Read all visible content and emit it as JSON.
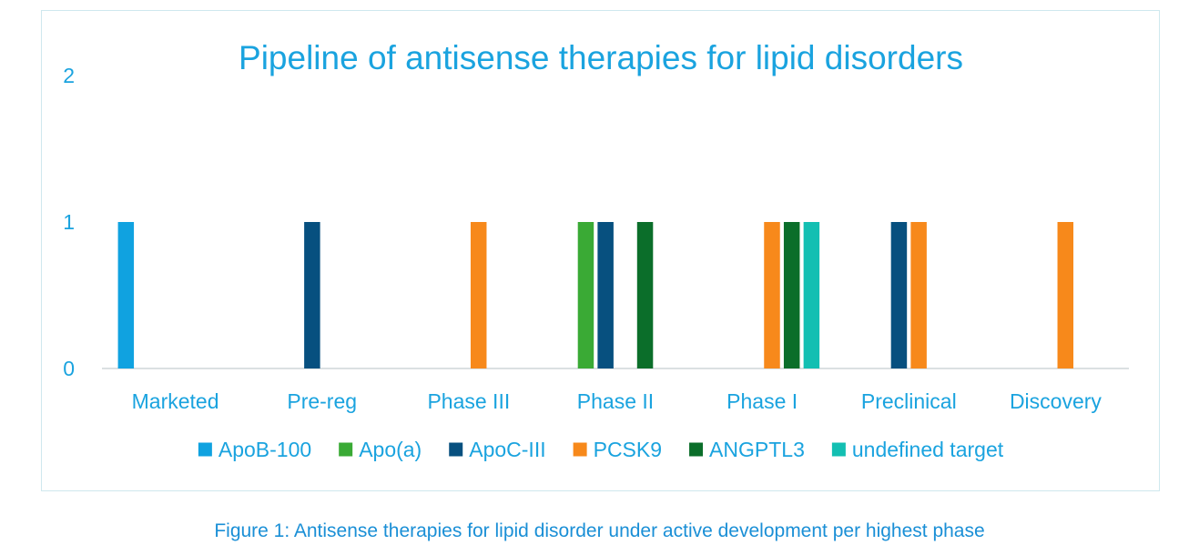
{
  "chart_data": {
    "type": "bar",
    "title": "Pipeline of antisense therapies for lipid disorders",
    "categories": [
      "Marketed",
      "Pre-reg",
      "Phase III",
      "Phase II",
      "Phase I",
      "Preclinical",
      "Discovery"
    ],
    "series": [
      {
        "name": "ApoB-100",
        "color": "#10a2e0",
        "values": [
          1,
          0,
          0,
          0,
          0,
          0,
          0
        ]
      },
      {
        "name": "Apo(a)",
        "color": "#3aaa35",
        "values": [
          0,
          0,
          0,
          1,
          0,
          0,
          0
        ]
      },
      {
        "name": "ApoC-III",
        "color": "#07507f",
        "values": [
          0,
          1,
          0,
          1,
          0,
          1,
          0
        ]
      },
      {
        "name": "PCSK9",
        "color": "#f7891b",
        "values": [
          0,
          0,
          1,
          0,
          1,
          1,
          1
        ]
      },
      {
        "name": "ANGPTL3",
        "color": "#0b6e2a",
        "values": [
          0,
          0,
          0,
          1,
          1,
          0,
          0
        ]
      },
      {
        "name": "undefined target",
        "color": "#13bfb2",
        "values": [
          0,
          0,
          0,
          0,
          1,
          0,
          0
        ]
      }
    ],
    "ylim": [
      0,
      2
    ],
    "yticks": [
      "0",
      "1",
      "2"
    ],
    "legend_position": "bottom",
    "grid": false
  },
  "caption": "Figure 1: Antisense therapies for lipid disorder under active development per highest phase",
  "colors": {
    "text": "#1aa3df",
    "axis": "#cfd6d9",
    "caption": "#1a8fd6"
  }
}
